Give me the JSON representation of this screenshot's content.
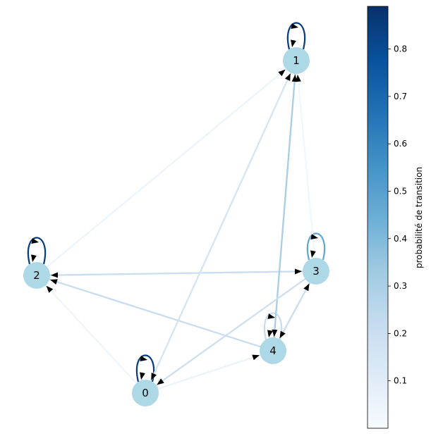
{
  "graph": {
    "nodes": [
      {
        "id": "0",
        "label": "0"
      },
      {
        "id": "1",
        "label": "1"
      },
      {
        "id": "2",
        "label": "2"
      },
      {
        "id": "3",
        "label": "3"
      },
      {
        "id": "4",
        "label": "4"
      }
    ],
    "node_color": "#add8e6",
    "edges": [
      {
        "from": "0",
        "to": "0",
        "p": 0.85
      },
      {
        "from": "1",
        "to": "1",
        "p": 0.85
      },
      {
        "from": "2",
        "to": "2",
        "p": 0.85
      },
      {
        "from": "3",
        "to": "3",
        "p": 0.48
      },
      {
        "from": "4",
        "to": "4",
        "p": 0.22
      },
      {
        "from": "0",
        "to": "1",
        "p": 0.15
      },
      {
        "from": "2",
        "to": "1",
        "p": 0.05
      },
      {
        "from": "3",
        "to": "1",
        "p": 0.03
      },
      {
        "from": "4",
        "to": "1",
        "p": 0.28
      },
      {
        "from": "2",
        "to": "3",
        "p": 0.22
      },
      {
        "from": "3",
        "to": "2",
        "p": 0.2
      },
      {
        "from": "4",
        "to": "2",
        "p": 0.22
      },
      {
        "from": "0",
        "to": "2",
        "p": 0.04
      },
      {
        "from": "4",
        "to": "3",
        "p": 0.25
      },
      {
        "from": "3",
        "to": "4",
        "p": 0.2
      },
      {
        "from": "1",
        "to": "4",
        "p": 0.3
      },
      {
        "from": "3",
        "to": "0",
        "p": 0.2
      },
      {
        "from": "0",
        "to": "4",
        "p": 0.06
      },
      {
        "from": "1",
        "to": "0",
        "p": 0.15
      }
    ]
  },
  "colorbar": {
    "label": "probabilité de transition",
    "ticks": [
      0.1,
      0.2,
      0.3,
      0.4,
      0.5,
      0.6,
      0.7,
      0.8
    ],
    "tick_labels": [
      "0.1",
      "0.2",
      "0.3",
      "0.4",
      "0.5",
      "0.6",
      "0.7",
      "0.8"
    ],
    "vmin": 0.0,
    "vmax": 0.89,
    "colormap": "Blues"
  }
}
